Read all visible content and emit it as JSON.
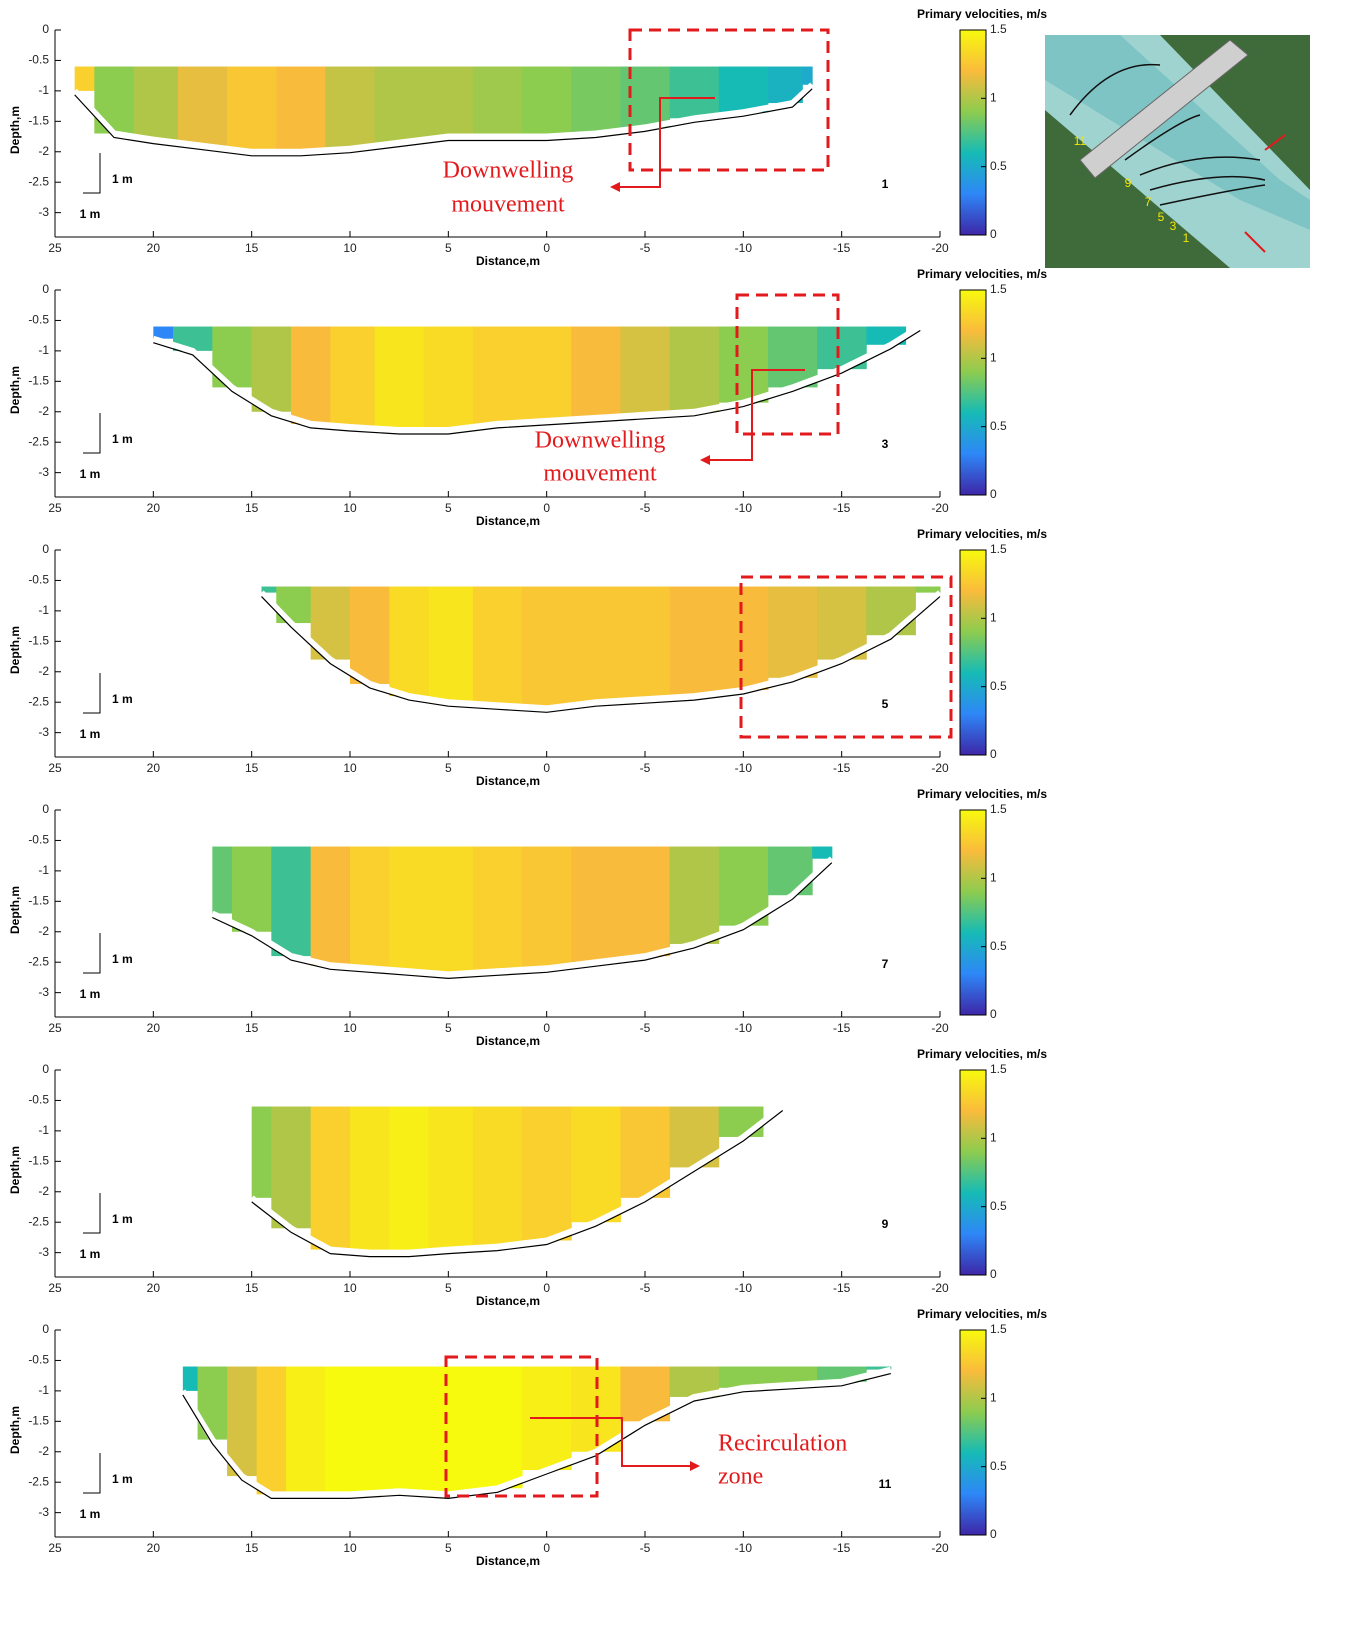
{
  "colormap": [
    "#3e26a8",
    "#2e87f7",
    "#16bbb6",
    "#8ccc4f",
    "#f9bb3c",
    "#f8fa0e"
  ],
  "photo_labels": [
    "11",
    "9",
    "7",
    "5",
    "3",
    "1"
  ],
  "chart_data": [
    {
      "type": "section",
      "label": "1",
      "xlabel": "Distance,m",
      "ylabel": "Depth,m",
      "scale_label": "1 m",
      "colorbar_title": "Primary velocities, m/s",
      "clim": [
        0,
        1.5
      ],
      "cticks": [
        0,
        0.5,
        1,
        1.5
      ],
      "xlim": [
        25,
        -20
      ],
      "xticks": [
        25,
        20,
        15,
        10,
        5,
        0,
        -5,
        -10,
        -15,
        -20
      ],
      "ylim": [
        -3.4,
        0
      ],
      "yticks": [
        0,
        -0.5,
        -1,
        -1.5,
        -2,
        -2.5,
        -3
      ],
      "surface": -0.6,
      "x": [
        24,
        22,
        20,
        17.5,
        15,
        12.5,
        10,
        7.5,
        5,
        2.5,
        0,
        -2.5,
        -5,
        -7.5,
        -10,
        -12.5,
        -13.5
      ],
      "bed": [
        -1.0,
        -1.7,
        -1.8,
        -1.9,
        -2.0,
        -2.0,
        -1.95,
        -1.85,
        -1.75,
        -1.75,
        -1.75,
        -1.7,
        -1.6,
        -1.45,
        -1.35,
        -1.2,
        -0.9
      ],
      "values": [
        1.3,
        0.9,
        1.0,
        1.15,
        1.25,
        1.2,
        1.05,
        1.0,
        1.0,
        0.95,
        0.9,
        0.85,
        0.8,
        0.7,
        0.6,
        0.55,
        0.5
      ],
      "annotation": [
        "Downwelling",
        "mouvement"
      ]
    },
    {
      "type": "section",
      "label": "3",
      "xlabel": "Distance,m",
      "ylabel": "Depth,m",
      "scale_label": "1 m",
      "colorbar_title": "Primary velocities, m/s",
      "clim": [
        0,
        1.5
      ],
      "cticks": [
        0,
        0.5,
        1,
        1.5
      ],
      "xlim": [
        25,
        -20
      ],
      "xticks": [
        25,
        20,
        15,
        10,
        5,
        0,
        -5,
        -10,
        -15,
        -20
      ],
      "ylim": [
        -3.4,
        0
      ],
      "yticks": [
        0,
        -0.5,
        -1,
        -1.5,
        -2,
        -2.5,
        -3
      ],
      "surface": -0.6,
      "x": [
        20,
        18,
        16,
        14,
        12,
        10,
        7.5,
        5,
        2.5,
        0,
        -2.5,
        -5,
        -7.5,
        -10,
        -12.5,
        -15,
        -17.5,
        -19
      ],
      "bed": [
        -0.8,
        -1.0,
        -1.6,
        -2.0,
        -2.2,
        -2.25,
        -2.3,
        -2.3,
        -2.2,
        -2.15,
        -2.1,
        -2.05,
        -2.0,
        -1.85,
        -1.6,
        -1.3,
        -0.9,
        -0.6
      ],
      "values": [
        0.3,
        0.7,
        0.9,
        1.0,
        1.2,
        1.3,
        1.4,
        1.35,
        1.3,
        1.3,
        1.2,
        1.1,
        1.0,
        0.9,
        0.8,
        0.7,
        0.6,
        0.6
      ],
      "annotation": [
        "Downwelling",
        "mouvement"
      ]
    },
    {
      "type": "section",
      "label": "5",
      "xlabel": "Distance,m",
      "ylabel": "Depth,m",
      "scale_label": "1 m",
      "colorbar_title": "Primary velocities, m/s",
      "clim": [
        0,
        1.5
      ],
      "cticks": [
        0,
        0.5,
        1,
        1.5
      ],
      "xlim": [
        25,
        -20
      ],
      "xticks": [
        25,
        20,
        15,
        10,
        5,
        0,
        -5,
        -10,
        -15,
        -20
      ],
      "ylim": [
        -3.4,
        0
      ],
      "yticks": [
        0,
        -0.5,
        -1,
        -1.5,
        -2,
        -2.5,
        -3
      ],
      "surface": -0.6,
      "x": [
        14.5,
        13,
        11,
        9,
        7,
        5,
        2.5,
        0,
        -2.5,
        -5,
        -7.5,
        -10,
        -12.5,
        -15,
        -17.5,
        -20
      ],
      "bed": [
        -0.7,
        -1.2,
        -1.8,
        -2.2,
        -2.4,
        -2.5,
        -2.55,
        -2.6,
        -2.5,
        -2.45,
        -2.4,
        -2.3,
        -2.1,
        -1.8,
        -1.4,
        -0.7
      ],
      "values": [
        0.7,
        0.9,
        1.1,
        1.2,
        1.35,
        1.4,
        1.3,
        1.25,
        1.25,
        1.25,
        1.2,
        1.2,
        1.15,
        1.1,
        1.0,
        0.9
      ]
    },
    {
      "type": "section",
      "label": "7",
      "xlabel": "Distance,m",
      "ylabel": "Depth,m",
      "scale_label": "1 m",
      "colorbar_title": "Primary velocities, m/s",
      "clim": [
        0,
        1.5
      ],
      "cticks": [
        0,
        0.5,
        1,
        1.5
      ],
      "xlim": [
        25,
        -20
      ],
      "xticks": [
        25,
        20,
        15,
        10,
        5,
        0,
        -5,
        -10,
        -15,
        -20
      ],
      "ylim": [
        -3.4,
        0
      ],
      "yticks": [
        0,
        -0.5,
        -1,
        -1.5,
        -2,
        -2.5,
        -3
      ],
      "surface": -0.6,
      "x": [
        17,
        15,
        13,
        11,
        9,
        7,
        5,
        2.5,
        0,
        -2.5,
        -5,
        -7.5,
        -10,
        -12.5,
        -14.5
      ],
      "bed": [
        -1.7,
        -2.0,
        -2.4,
        -2.55,
        -2.6,
        -2.65,
        -2.7,
        -2.65,
        -2.6,
        -2.5,
        -2.4,
        -2.2,
        -1.9,
        -1.4,
        -0.8
      ],
      "values": [
        0.8,
        0.9,
        0.7,
        1.2,
        1.3,
        1.35,
        1.35,
        1.3,
        1.25,
        1.2,
        1.2,
        1.0,
        0.9,
        0.8,
        0.6
      ]
    },
    {
      "type": "section",
      "label": "9",
      "xlabel": "Distance,m",
      "ylabel": "Depth,m",
      "scale_label": "1 m",
      "colorbar_title": "Primary velocities, m/s",
      "clim": [
        0,
        1.5
      ],
      "cticks": [
        0,
        0.5,
        1,
        1.5
      ],
      "xlim": [
        25,
        -20
      ],
      "xticks": [
        25,
        20,
        15,
        10,
        5,
        0,
        -5,
        -10,
        -15,
        -20
      ],
      "ylim": [
        -3.4,
        0
      ],
      "yticks": [
        0,
        -0.5,
        -1,
        -1.5,
        -2,
        -2.5,
        -3
      ],
      "surface": -0.6,
      "x": [
        15,
        13,
        11,
        9,
        7,
        5,
        2.5,
        0,
        -2.5,
        -5,
        -7.5,
        -10,
        -12
      ],
      "bed": [
        -2.1,
        -2.6,
        -2.95,
        -3.0,
        -3.0,
        -2.95,
        -2.9,
        -2.8,
        -2.5,
        -2.1,
        -1.6,
        -1.1,
        -0.6
      ],
      "values": [
        0.9,
        1.0,
        1.3,
        1.4,
        1.45,
        1.4,
        1.35,
        1.3,
        1.35,
        1.25,
        1.1,
        0.9,
        0.7
      ]
    },
    {
      "type": "section",
      "label": "11",
      "xlabel": "Distance,m",
      "ylabel": "Depth,m",
      "scale_label": "1 m",
      "colorbar_title": "Primary velocities, m/s",
      "clim": [
        0,
        1.5
      ],
      "cticks": [
        0,
        0.5,
        1,
        1.5
      ],
      "xlim": [
        25,
        -20
      ],
      "xticks": [
        25,
        20,
        15,
        10,
        5,
        0,
        -5,
        -10,
        -15,
        -20
      ],
      "ylim": [
        -3.4,
        0
      ],
      "yticks": [
        0,
        -0.5,
        -1,
        -1.5,
        -2,
        -2.5,
        -3
      ],
      "surface": -0.6,
      "x": [
        18.5,
        17,
        15.5,
        14,
        12.5,
        10,
        7.5,
        5,
        2.5,
        0,
        -2.5,
        -5,
        -7.5,
        -10,
        -12.5,
        -15,
        -17.5
      ],
      "bed": [
        -1.0,
        -1.8,
        -2.4,
        -2.7,
        -2.7,
        -2.7,
        -2.65,
        -2.7,
        -2.6,
        -2.3,
        -2.0,
        -1.5,
        -1.1,
        -0.95,
        -0.9,
        -0.85,
        -0.65
      ],
      "values": [
        0.6,
        0.9,
        1.1,
        1.3,
        1.45,
        1.5,
        1.5,
        1.5,
        1.5,
        1.45,
        1.4,
        1.2,
        1.0,
        0.9,
        0.9,
        0.8,
        0.7
      ],
      "annotation": [
        "Recirculation",
        "zone"
      ]
    }
  ]
}
